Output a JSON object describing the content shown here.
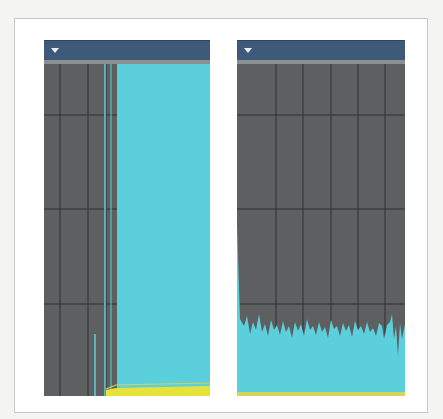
{
  "panels": [
    {
      "id": "left",
      "header_color": "#3e5a78",
      "collapse_icon": "chevron-down-icon",
      "background_color": "#5d5f60",
      "signal_color": "#5ccfdc",
      "baseline_color": "#e6e23a",
      "fill_start_fraction": 0.39,
      "baseline_level_fraction": 0.03
    },
    {
      "id": "right",
      "header_color": "#3e5a78",
      "collapse_icon": "chevron-down-icon",
      "background_color": "#5d5f60",
      "signal_color": "#5ccfdc",
      "baseline_color": "#e6e23a",
      "noise_level_fraction": 0.22
    }
  ]
}
